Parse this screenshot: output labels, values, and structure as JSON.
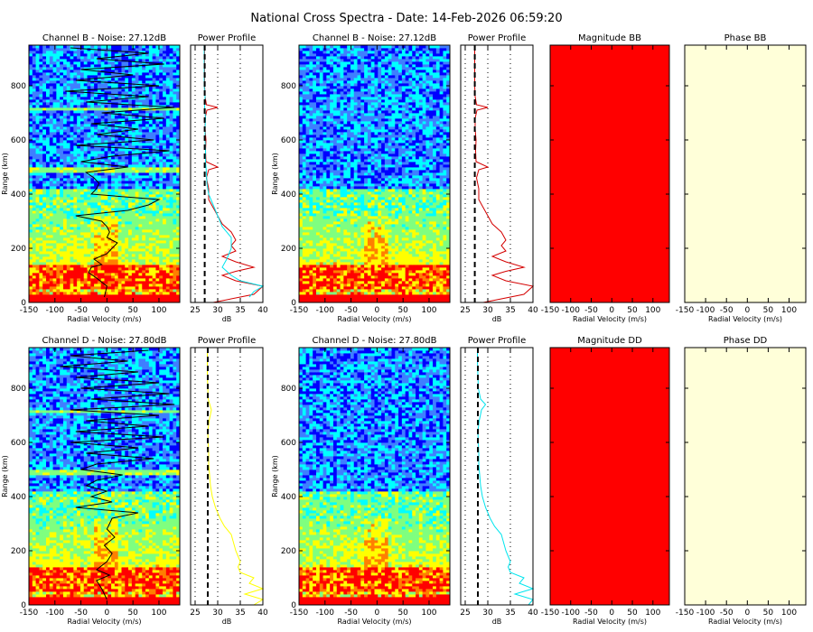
{
  "title": "National Cross Spectra - Date: 14-Feb-2026 06:59:20",
  "axis_labels": {
    "velocity": "Radial Velocity (m/s)",
    "range": "Range (km)",
    "db": "dB"
  },
  "colors": {
    "jet": [
      "#00008f",
      "#0000ff",
      "#3f7fff",
      "#00ffff",
      "#7fff7f",
      "#ffff00",
      "#ff7f00",
      "#ff0000"
    ],
    "magnitude_fill": "#ff0000",
    "phase_fill": "#ffffd9",
    "profile_red": "#d40000",
    "profile_cyan": "#00e5ee",
    "profile_yellow": "#ffff00",
    "frame": "#000000"
  },
  "chart_data": [
    {
      "type": "heatmap",
      "panel": "spectrum_B",
      "title": "Channel B - Noise: 27.12dB",
      "xlabel": "Radial Velocity (m/s)",
      "ylabel": "Range (km)",
      "xlim": [
        -150,
        140
      ],
      "ylim": [
        0,
        950
      ],
      "xticks": [
        -150,
        -100,
        -50,
        0,
        50,
        100
      ],
      "yticks": [
        0,
        200,
        400,
        600,
        800
      ],
      "noise_db": 27.12,
      "peak_velocity_trace": {
        "range_km": [
          20,
          60,
          90,
          110,
          130,
          140,
          160,
          180,
          200,
          220,
          240,
          260,
          280,
          300,
          320,
          340,
          360,
          380,
          400,
          420,
          440,
          460,
          480,
          500,
          520,
          540,
          560,
          580,
          600,
          620,
          640,
          660,
          680,
          700,
          720,
          740,
          760,
          780,
          800,
          820,
          840,
          860,
          880,
          900,
          920,
          940
        ],
        "velocity": [
          -5,
          0,
          -20,
          -35,
          -30,
          -10,
          -25,
          0,
          10,
          20,
          0,
          5,
          0,
          -10,
          -60,
          40,
          80,
          100,
          -30,
          -20,
          -15,
          -25,
          -40,
          40,
          -50,
          10,
          120,
          -60,
          90,
          -20,
          60,
          -30,
          110,
          -10,
          130,
          -40,
          80,
          -80,
          100,
          -60,
          50,
          -50,
          110,
          -20,
          80,
          -70
        ]
      }
    },
    {
      "type": "line",
      "panel": "profile_B1",
      "title": "Power Profile",
      "xlabel": "dB",
      "xlim": [
        24,
        40
      ],
      "ylim": [
        0,
        950
      ],
      "xticks": [
        25,
        30,
        35,
        40
      ],
      "noise_level_db": 27.12,
      "series": [
        {
          "color": "red",
          "range_km": [
            0,
            30,
            60,
            80,
            100,
            115,
            130,
            150,
            170,
            190,
            210,
            230,
            260,
            290,
            320,
            350,
            380,
            420,
            460,
            490,
            500,
            520,
            560,
            600,
            640,
            680,
            710,
            720,
            730,
            760,
            800,
            850,
            900,
            950
          ],
          "db": [
            29,
            38,
            40,
            34,
            31,
            34,
            38,
            34,
            31,
            34,
            33,
            34,
            33,
            31,
            30,
            29,
            28,
            28,
            27.5,
            28,
            30,
            27.4,
            27.3,
            27.4,
            27.2,
            27.2,
            27.6,
            30,
            27.5,
            27.2,
            27.1,
            27.1,
            27.1,
            27.1
          ]
        },
        {
          "color": "cyan",
          "range_km": [
            20,
            40,
            60,
            80,
            100,
            130,
            160,
            200,
            240,
            280,
            320,
            360,
            400,
            440,
            480,
            520,
            560,
            600,
            640,
            680,
            720,
            760,
            800,
            850,
            900,
            950
          ],
          "db": [
            37,
            38,
            40,
            35,
            33,
            31,
            32,
            33,
            33,
            31,
            30,
            29,
            28,
            27.6,
            27.5,
            27.3,
            27.3,
            27.2,
            27.2,
            27.3,
            27.1,
            27.2,
            27,
            27,
            27,
            27
          ]
        }
      ]
    },
    {
      "type": "heatmap",
      "panel": "spectrum_B2",
      "title": "Channel B - Noise: 27.12dB",
      "xlabel": "Radial Velocity (m/s)",
      "ylabel": "Range (km)",
      "xlim": [
        -150,
        140
      ],
      "ylim": [
        0,
        950
      ],
      "xticks": [
        -150,
        -100,
        -50,
        0,
        50,
        100
      ],
      "yticks": [
        0,
        200,
        400,
        600,
        800
      ],
      "noise_db": 27.12
    },
    {
      "type": "line",
      "panel": "profile_B2",
      "title": "Power Profile",
      "xlabel": "dB",
      "xlim": [
        24,
        40
      ],
      "ylim": [
        0,
        950
      ],
      "xticks": [
        25,
        30,
        35,
        40
      ],
      "noise_level_db": 27.12,
      "series": [
        {
          "color": "red",
          "range_km": [
            0,
            30,
            60,
            80,
            100,
            115,
            130,
            150,
            170,
            190,
            210,
            230,
            260,
            290,
            320,
            350,
            380,
            420,
            460,
            490,
            500,
            520,
            560,
            600,
            640,
            680,
            710,
            720,
            730,
            760,
            800,
            850,
            900,
            950
          ],
          "db": [
            29,
            38,
            40,
            34,
            31,
            34,
            38,
            34,
            31,
            34,
            33,
            34,
            33,
            31,
            30,
            29,
            28,
            28,
            27.5,
            28,
            30,
            27.4,
            27.3,
            27.4,
            27.2,
            27.2,
            27.6,
            30,
            27.5,
            27.2,
            27.1,
            27.1,
            27.1,
            27.1
          ]
        }
      ]
    },
    {
      "type": "heatmap",
      "panel": "magnitude_BB",
      "title": "Magnitude BB",
      "xlabel": "Radial Velocity (m/s)",
      "xlim": [
        -150,
        140
      ],
      "ylim": [
        0,
        950
      ],
      "xticks": [
        -150,
        -100,
        -50,
        0,
        50,
        100
      ],
      "yticks": [
        0,
        200,
        400,
        600,
        800
      ],
      "fill": "uniform red"
    },
    {
      "type": "heatmap",
      "panel": "phase_BB",
      "title": "Phase BB",
      "xlabel": "Radial Velocity (m/s)",
      "xlim": [
        -150,
        140
      ],
      "ylim": [
        0,
        950
      ],
      "xticks": [
        -150,
        -100,
        -50,
        0,
        50,
        100
      ],
      "yticks": [
        0,
        200,
        400,
        600,
        800
      ],
      "fill": "uniform pale yellow"
    },
    {
      "type": "heatmap",
      "panel": "spectrum_D",
      "title": "Channel D - Noise: 27.80dB",
      "xlabel": "Radial Velocity (m/s)",
      "ylabel": "Range (km)",
      "xlim": [
        -150,
        140
      ],
      "ylim": [
        0,
        950
      ],
      "xticks": [
        -150,
        -100,
        -50,
        0,
        50,
        100
      ],
      "yticks": [
        0,
        200,
        400,
        600,
        800
      ],
      "noise_db": 27.8,
      "peak_velocity_trace": {
        "range_km": [
          20,
          60,
          90,
          110,
          130,
          160,
          190,
          220,
          250,
          280,
          300,
          320,
          340,
          360,
          380,
          400,
          420,
          440,
          460,
          480,
          500,
          520,
          540,
          560,
          580,
          600,
          620,
          640,
          660,
          680,
          700,
          720,
          740,
          760,
          780,
          800,
          820,
          840,
          860,
          880,
          900,
          920,
          940
        ],
        "velocity": [
          0,
          -10,
          -20,
          5,
          -20,
          0,
          10,
          -5,
          15,
          0,
          5,
          10,
          60,
          -60,
          10,
          -30,
          0,
          -40,
          -20,
          30,
          -50,
          -20,
          90,
          -40,
          60,
          -70,
          110,
          -60,
          80,
          -40,
          100,
          -70,
          130,
          -30,
          120,
          -50,
          100,
          -60,
          60,
          -90,
          40,
          -70,
          80
        ]
      }
    },
    {
      "type": "line",
      "panel": "profile_D1",
      "title": "Power Profile",
      "xlabel": "dB",
      "xlim": [
        24,
        40
      ],
      "ylim": [
        0,
        950
      ],
      "xticks": [
        25,
        30,
        35,
        40
      ],
      "noise_level_db": 27.8,
      "series": [
        {
          "color": "yellow",
          "range_km": [
            0,
            20,
            40,
            60,
            80,
            100,
            120,
            140,
            160,
            180,
            200,
            230,
            260,
            290,
            320,
            360,
            400,
            440,
            480,
            520,
            560,
            600,
            640,
            680,
            720,
            760,
            800,
            850,
            900,
            950
          ],
          "db": [
            38,
            40,
            36,
            40,
            37,
            38,
            35,
            34.5,
            35,
            34.5,
            34,
            33.5,
            33,
            31.5,
            30.5,
            29.5,
            28.8,
            28.4,
            28.2,
            28,
            28,
            27.9,
            27.8,
            28.1,
            28.6,
            27.9,
            27.8,
            27.7,
            27.7,
            27.7
          ]
        }
      ]
    },
    {
      "type": "heatmap",
      "panel": "spectrum_D2",
      "title": "Channel D - Noise: 27.80dB",
      "xlabel": "Radial Velocity (m/s)",
      "ylabel": "Range (km)",
      "xlim": [
        -150,
        140
      ],
      "ylim": [
        0,
        950
      ],
      "xticks": [
        -150,
        -100,
        -50,
        0,
        50,
        100
      ],
      "yticks": [
        0,
        200,
        400,
        600,
        800
      ],
      "noise_db": 27.8
    },
    {
      "type": "line",
      "panel": "profile_D2",
      "title": "Power Profile",
      "xlabel": "dB",
      "xlim": [
        24,
        40
      ],
      "ylim": [
        0,
        950
      ],
      "xticks": [
        25,
        30,
        35,
        40
      ],
      "noise_level_db": 27.8,
      "series": [
        {
          "color": "cyan",
          "range_km": [
            0,
            20,
            40,
            60,
            80,
            100,
            120,
            140,
            160,
            180,
            200,
            230,
            260,
            290,
            320,
            360,
            400,
            440,
            480,
            520,
            560,
            600,
            640,
            680,
            720,
            740,
            760,
            800,
            850,
            900,
            950
          ],
          "db": [
            39,
            40,
            36,
            40,
            37,
            38,
            35,
            34.5,
            35,
            34.5,
            34,
            33.5,
            33,
            31.5,
            30.5,
            29.5,
            28.8,
            28.4,
            28.2,
            28,
            28,
            27.9,
            27.8,
            28.1,
            28.6,
            29.5,
            28.4,
            27.9,
            27.8,
            27.7,
            27.7
          ]
        }
      ]
    },
    {
      "type": "heatmap",
      "panel": "magnitude_DD",
      "title": "Magnitude DD",
      "xlabel": "Radial Velocity (m/s)",
      "xlim": [
        -150,
        140
      ],
      "ylim": [
        0,
        950
      ],
      "xticks": [
        -150,
        -100,
        -50,
        0,
        50,
        100
      ],
      "yticks": [
        0,
        200,
        400,
        600,
        800
      ],
      "fill": "uniform red"
    },
    {
      "type": "heatmap",
      "panel": "phase_DD",
      "title": "Phase DD",
      "xlabel": "Radial Velocity (m/s)",
      "xlim": [
        -150,
        140
      ],
      "ylim": [
        0,
        950
      ],
      "xticks": [
        -150,
        -100,
        -50,
        0,
        50,
        100
      ],
      "yticks": [
        0,
        200,
        400,
        600,
        800
      ],
      "fill": "uniform pale yellow"
    }
  ]
}
